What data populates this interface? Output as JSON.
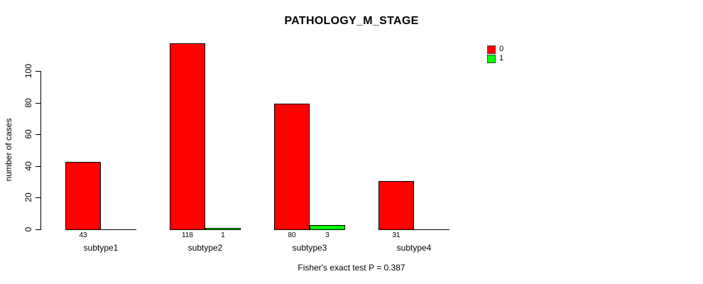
{
  "title": "PATHOLOGY_M_STAGE",
  "footer": "Fisher's exact test P = 0.387",
  "legend": {
    "position": "top-right",
    "items": [
      {
        "label": "0",
        "color": "#FF0000"
      },
      {
        "label": "1",
        "color": "#00FF00"
      }
    ]
  },
  "chart_data": {
    "type": "bar",
    "title": "PATHOLOGY_M_STAGE",
    "xlabel": "",
    "ylabel": "number of cases",
    "categories": [
      "subtype1",
      "subtype2",
      "subtype3",
      "subtype4"
    ],
    "series": [
      {
        "name": "0",
        "color": "#FF0000",
        "values": [
          43,
          118,
          80,
          31
        ]
      },
      {
        "name": "1",
        "color": "#00FF00",
        "values": [
          0,
          1,
          3,
          0
        ]
      }
    ],
    "yticks": [
      0,
      20,
      40,
      60,
      80,
      100
    ],
    "ylim": [
      0,
      120
    ],
    "grid": false,
    "legend_position": "top-right",
    "bar_value_labels": "shown below axis for non-zero bars",
    "annotation": "Fisher's exact test P = 0.387"
  }
}
